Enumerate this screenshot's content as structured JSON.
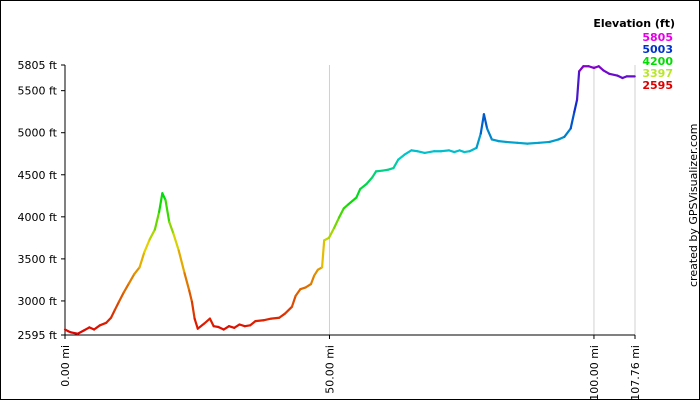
{
  "chart_data": {
    "type": "line",
    "title": "",
    "xlabel": "",
    "ylabel": "",
    "x_unit": "mi",
    "y_unit": "ft",
    "xlim": [
      0,
      107.76
    ],
    "ylim": [
      2595,
      5805
    ],
    "x_ticks": [
      {
        "value": 0,
        "label": "0.00 mi"
      },
      {
        "value": 50,
        "label": "50.00 mi"
      },
      {
        "value": 100,
        "label": "100.00 mi"
      },
      {
        "value": 107.76,
        "label": "107.76 mi"
      }
    ],
    "y_ticks": [
      {
        "value": 5805,
        "label": "5805 ft"
      },
      {
        "value": 5500,
        "label": "5500 ft"
      },
      {
        "value": 5000,
        "label": "5000 ft"
      },
      {
        "value": 4500,
        "label": "4500 ft"
      },
      {
        "value": 4000,
        "label": "4000 ft"
      },
      {
        "value": 3500,
        "label": "3500 ft"
      },
      {
        "value": 3000,
        "label": "3000 ft"
      },
      {
        "value": 2595,
        "label": "2595 ft"
      }
    ],
    "grid": {
      "vertical": true,
      "horizontal": false
    },
    "legend": {
      "title": "Elevation (ft)",
      "placement": "top-right",
      "entries": [
        {
          "label": "5805",
          "color": "#e600e6"
        },
        {
          "label": "5003",
          "color": "#0033cc"
        },
        {
          "label": "4200",
          "color": "#00dd00"
        },
        {
          "label": "3397",
          "color": "#b8e62a"
        },
        {
          "label": "2595",
          "color": "#dd0000"
        }
      ]
    },
    "colors": [
      "#dd0000",
      "#dd6600",
      "#e6d200",
      "#00dd00",
      "#00cccc",
      "#0033cc",
      "#8800cc"
    ],
    "series": [
      {
        "points": [
          [
            0,
            2660
          ],
          [
            0.6,
            2640
          ],
          [
            1.2,
            2625
          ],
          [
            2.4,
            2610
          ],
          [
            3.6,
            2650
          ],
          [
            4.6,
            2685
          ],
          [
            5.5,
            2660
          ],
          [
            6.6,
            2710
          ],
          [
            7.8,
            2740
          ],
          [
            8.7,
            2800
          ],
          [
            9.4,
            2890
          ],
          [
            10.2,
            2990
          ],
          [
            11.1,
            3100
          ],
          [
            12.1,
            3210
          ],
          [
            13.1,
            3320
          ],
          [
            14.1,
            3400
          ],
          [
            15.0,
            3580
          ],
          [
            16.0,
            3730
          ],
          [
            17.0,
            3850
          ],
          [
            17.8,
            4060
          ],
          [
            18.4,
            4280
          ],
          [
            19.0,
            4200
          ],
          [
            19.7,
            3940
          ],
          [
            20.5,
            3800
          ],
          [
            21.5,
            3600
          ],
          [
            22.6,
            3330
          ],
          [
            23.5,
            3120
          ],
          [
            24.0,
            2990
          ],
          [
            24.5,
            2790
          ],
          [
            25.1,
            2670
          ],
          [
            26.3,
            2730
          ],
          [
            27.4,
            2790
          ],
          [
            28.1,
            2700
          ],
          [
            29.0,
            2690
          ],
          [
            30.0,
            2660
          ],
          [
            31.0,
            2700
          ],
          [
            32.0,
            2680
          ],
          [
            33.0,
            2720
          ],
          [
            34.0,
            2700
          ],
          [
            35.0,
            2710
          ],
          [
            36.0,
            2760
          ],
          [
            37.5,
            2770
          ],
          [
            39.0,
            2790
          ],
          [
            40.5,
            2800
          ],
          [
            41.6,
            2850
          ],
          [
            42.9,
            2930
          ],
          [
            43.6,
            3060
          ],
          [
            44.5,
            3140
          ],
          [
            45.5,
            3160
          ],
          [
            46.5,
            3200
          ],
          [
            47.1,
            3300
          ],
          [
            47.8,
            3370
          ],
          [
            48.6,
            3400
          ],
          [
            49.0,
            3720
          ],
          [
            49.9,
            3750
          ],
          [
            50.9,
            3870
          ],
          [
            51.8,
            3990
          ],
          [
            52.7,
            4100
          ],
          [
            53.6,
            4150
          ],
          [
            55.1,
            4230
          ],
          [
            55.8,
            4330
          ],
          [
            57.0,
            4390
          ],
          [
            58.1,
            4470
          ],
          [
            58.8,
            4540
          ],
          [
            60.1,
            4550
          ],
          [
            61.1,
            4560
          ],
          [
            62.1,
            4580
          ],
          [
            63.0,
            4680
          ],
          [
            64.2,
            4740
          ],
          [
            65.5,
            4790
          ],
          [
            66.6,
            4780
          ],
          [
            68.0,
            4760
          ],
          [
            69.8,
            4780
          ],
          [
            71.1,
            4780
          ],
          [
            72.6,
            4790
          ],
          [
            73.6,
            4770
          ],
          [
            74.6,
            4790
          ],
          [
            75.5,
            4770
          ],
          [
            76.5,
            4780
          ],
          [
            77.8,
            4820
          ],
          [
            78.6,
            4990
          ],
          [
            79.2,
            5220
          ],
          [
            79.8,
            5050
          ],
          [
            80.7,
            4920
          ],
          [
            82.0,
            4900
          ],
          [
            83.4,
            4890
          ],
          [
            85.5,
            4880
          ],
          [
            87.4,
            4870
          ],
          [
            89.6,
            4880
          ],
          [
            91.6,
            4890
          ],
          [
            93.3,
            4920
          ],
          [
            94.4,
            4950
          ],
          [
            95.6,
            5050
          ],
          [
            96.3,
            5250
          ],
          [
            96.8,
            5390
          ],
          [
            97.2,
            5730
          ],
          [
            98.0,
            5790
          ],
          [
            99.0,
            5790
          ],
          [
            100.0,
            5770
          ],
          [
            100.9,
            5790
          ],
          [
            101.8,
            5740
          ],
          [
            102.9,
            5700
          ],
          [
            104.4,
            5680
          ],
          [
            105.4,
            5650
          ],
          [
            106.2,
            5670
          ],
          [
            107.7,
            5670
          ]
        ]
      }
    ]
  },
  "credit": "created by GPSVisualizer.com"
}
